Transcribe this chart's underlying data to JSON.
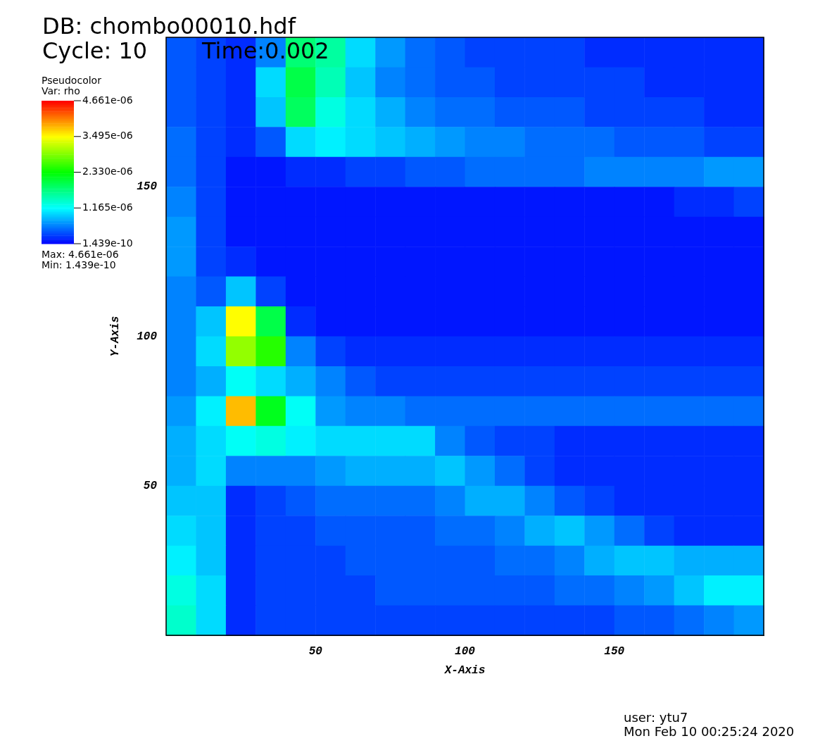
{
  "chart_data": {
    "type": "heatmap",
    "title": "DB: chombo00010.hdf",
    "xlabel": "X-Axis",
    "ylabel": "Y-Axis",
    "legend_title": "Pseudocolor",
    "clabel": "Var: rho",
    "annotations": [
      "Cycle: 10",
      "Time:0.002",
      "Max: 4.661e-06",
      "Min: 1.439e-10",
      "user: ytu7",
      "Mon Feb 10 00:25:24 2020"
    ],
    "xlim": [
      0,
      200
    ],
    "ylim": [
      0,
      200
    ],
    "xticks": [
      50,
      100,
      150
    ],
    "yticks": [
      50,
      100,
      150
    ],
    "grid": false,
    "clim": [
      1.439e-10,
      4.661e-06
    ],
    "cticks": [
      {
        "value": 1.439e-10,
        "label": "1.439e-10"
      },
      {
        "value": 1.165e-06,
        "label": "1.165e-06"
      },
      {
        "value": 2.33e-06,
        "label": "2.330e-06"
      },
      {
        "value": 3.495e-06,
        "label": "3.495e-06"
      },
      {
        "value": 4.661e-06,
        "label": "4.661e-06"
      }
    ],
    "cells": [
      [
        4e-07,
        3e-07,
        2e-07,
        6e-07,
        1.8e-06,
        1.6e-06,
        1e-06,
        7e-07,
        5e-07,
        4e-07,
        3e-07,
        3e-07,
        3e-07,
        3e-07,
        2e-07,
        2e-07,
        2e-07,
        2e-07,
        2e-07,
        2e-07
      ],
      [
        4e-07,
        3e-07,
        2e-07,
        1e-06,
        2e-06,
        1.5e-06,
        9e-07,
        6e-07,
        5e-07,
        4e-07,
        4e-07,
        3e-07,
        3e-07,
        3e-07,
        3e-07,
        3e-07,
        2e-07,
        2e-07,
        2e-07,
        2e-07
      ],
      [
        4e-07,
        3e-07,
        2e-07,
        9e-07,
        1.9e-06,
        1.3e-06,
        1e-06,
        8e-07,
        6e-07,
        5e-07,
        5e-07,
        4e-07,
        4e-07,
        4e-07,
        3e-07,
        3e-07,
        3e-07,
        3e-07,
        2e-07,
        2e-07
      ],
      [
        5e-07,
        3e-07,
        2e-07,
        4e-07,
        1e-06,
        1.1e-06,
        1e-06,
        9e-07,
        8e-07,
        7e-07,
        6e-07,
        6e-07,
        5e-07,
        5e-07,
        5e-07,
        4e-07,
        4e-07,
        4e-07,
        3e-07,
        3e-07
      ],
      [
        5e-07,
        3e-07,
        1e-07,
        1e-07,
        2e-07,
        2e-07,
        3e-07,
        3e-07,
        4e-07,
        4e-07,
        5e-07,
        5e-07,
        5e-07,
        5e-07,
        6e-07,
        6e-07,
        6e-07,
        6e-07,
        7e-07,
        7e-07
      ],
      [
        6e-07,
        3e-07,
        1e-07,
        1e-07,
        1e-07,
        1e-07,
        1e-07,
        1e-07,
        1e-07,
        1e-07,
        1e-07,
        1e-07,
        1e-07,
        1e-07,
        1e-07,
        1e-07,
        1e-07,
        2e-07,
        2e-07,
        3e-07
      ],
      [
        7e-07,
        3e-07,
        1e-07,
        1e-07,
        1e-07,
        1e-07,
        1e-07,
        1e-07,
        1e-07,
        1e-07,
        1e-07,
        1e-07,
        1e-07,
        1e-07,
        1e-07,
        1e-07,
        1e-07,
        1e-07,
        1e-07,
        1e-07
      ],
      [
        7e-07,
        3e-07,
        2e-07,
        1e-07,
        1e-07,
        1e-07,
        1e-07,
        1e-07,
        1e-07,
        1e-07,
        1e-07,
        1e-07,
        1e-07,
        1e-07,
        1e-07,
        1e-07,
        1e-07,
        1e-07,
        1e-07,
        1e-07
      ],
      [
        6e-07,
        4e-07,
        9e-07,
        3e-07,
        1e-07,
        1e-07,
        1e-07,
        1e-07,
        1e-07,
        1e-07,
        1e-07,
        1e-07,
        1e-07,
        1e-07,
        1e-07,
        1e-07,
        1e-07,
        1e-07,
        1e-07,
        1e-07
      ],
      [
        6e-07,
        9e-07,
        3.5e-06,
        2e-06,
        2e-07,
        1e-07,
        1e-07,
        1e-07,
        1e-07,
        1e-07,
        1e-07,
        1e-07,
        1e-07,
        1e-07,
        1e-07,
        1e-07,
        1e-07,
        1e-07,
        1e-07,
        1e-07
      ],
      [
        6e-07,
        1e-06,
        3e-06,
        2.5e-06,
        6e-07,
        3e-07,
        2e-07,
        2e-07,
        2e-07,
        2e-07,
        2e-07,
        2e-07,
        2e-07,
        2e-07,
        2e-07,
        2e-07,
        2e-07,
        2e-07,
        2e-07,
        2e-07
      ],
      [
        6e-07,
        8e-07,
        1.2e-06,
        1e-06,
        8e-07,
        6e-07,
        4e-07,
        3e-07,
        3e-07,
        3e-07,
        3e-07,
        3e-07,
        3e-07,
        3e-07,
        3e-07,
        3e-07,
        3e-07,
        3e-07,
        3e-07,
        3e-07
      ],
      [
        7e-07,
        1.1e-06,
        3.8e-06,
        2.2e-06,
        1.2e-06,
        7e-07,
        6e-07,
        6e-07,
        5e-07,
        5e-07,
        5e-07,
        5e-07,
        5e-07,
        5e-07,
        5e-07,
        5e-07,
        5e-07,
        5e-07,
        5e-07,
        5e-07
      ],
      [
        8e-07,
        1e-06,
        1.2e-06,
        1.3e-06,
        1.1e-06,
        1e-06,
        1e-06,
        1e-06,
        1e-06,
        6e-07,
        4e-07,
        3e-07,
        3e-07,
        2e-07,
        2e-07,
        2e-07,
        2e-07,
        2e-07,
        2e-07,
        2e-07
      ],
      [
        8e-07,
        1e-06,
        6e-07,
        6e-07,
        6e-07,
        7e-07,
        8e-07,
        8e-07,
        8e-07,
        9e-07,
        7e-07,
        5e-07,
        3e-07,
        2e-07,
        2e-07,
        2e-07,
        2e-07,
        2e-07,
        2e-07,
        2e-07
      ],
      [
        9e-07,
        9e-07,
        2e-07,
        3e-07,
        4e-07,
        5e-07,
        5e-07,
        5e-07,
        5e-07,
        6e-07,
        8e-07,
        8e-07,
        6e-07,
        4e-07,
        3e-07,
        2e-07,
        2e-07,
        2e-07,
        2e-07,
        2e-07
      ],
      [
        1e-06,
        9e-07,
        2e-07,
        3e-07,
        3e-07,
        4e-07,
        4e-07,
        4e-07,
        4e-07,
        5e-07,
        5e-07,
        6e-07,
        8e-07,
        9e-07,
        7e-07,
        5e-07,
        3e-07,
        2e-07,
        2e-07,
        2e-07
      ],
      [
        1.1e-06,
        9e-07,
        2e-07,
        3e-07,
        3e-07,
        3e-07,
        4e-07,
        4e-07,
        4e-07,
        4e-07,
        4e-07,
        5e-07,
        5e-07,
        6e-07,
        8e-07,
        9e-07,
        9e-07,
        8e-07,
        8e-07,
        8e-07
      ],
      [
        1.3e-06,
        1e-06,
        2e-07,
        3e-07,
        3e-07,
        3e-07,
        3e-07,
        4e-07,
        4e-07,
        4e-07,
        4e-07,
        4e-07,
        4e-07,
        5e-07,
        5e-07,
        6e-07,
        7e-07,
        9e-07,
        1.1e-06,
        1.1e-06
      ],
      [
        1.4e-06,
        1e-06,
        2e-07,
        3e-07,
        3e-07,
        3e-07,
        3e-07,
        3e-07,
        3e-07,
        3e-07,
        3e-07,
        3e-07,
        3e-07,
        3e-07,
        3e-07,
        4e-07,
        4e-07,
        5e-07,
        6e-07,
        7e-07
      ]
    ]
  }
}
